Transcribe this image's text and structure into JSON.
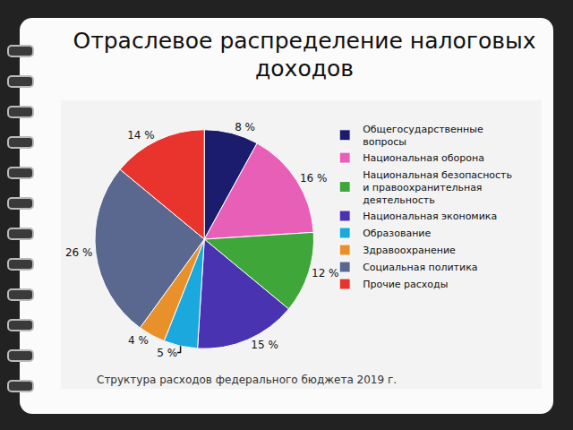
{
  "chart_data": {
    "type": "pie",
    "title": "Отраслевое распределение налоговых доходов",
    "categories": [
      "Общегосударственные вопросы",
      "Национальная оборона",
      "Национальная безопасность и правоохранительная деятельность",
      "Национальная экономика",
      "Образование",
      "Здравоохранение",
      "Социальная политика",
      "Прочие расходы"
    ],
    "values": [
      8,
      16,
      12,
      15,
      5,
      4,
      26,
      14
    ],
    "value_labels": [
      "8 %",
      "16 %",
      "12 %",
      "15 %",
      "5 %",
      "4 %",
      "26 %",
      "14 %"
    ],
    "colors": [
      "#1c1c6e",
      "#e85fb8",
      "#3fa63a",
      "#4a33b0",
      "#1ba8dc",
      "#e8902a",
      "#5a6890",
      "#e8342c"
    ],
    "data_labels": true,
    "legend": "right",
    "annotations": [
      "Структура расходов федерального бюджета 2019 г."
    ]
  }
}
